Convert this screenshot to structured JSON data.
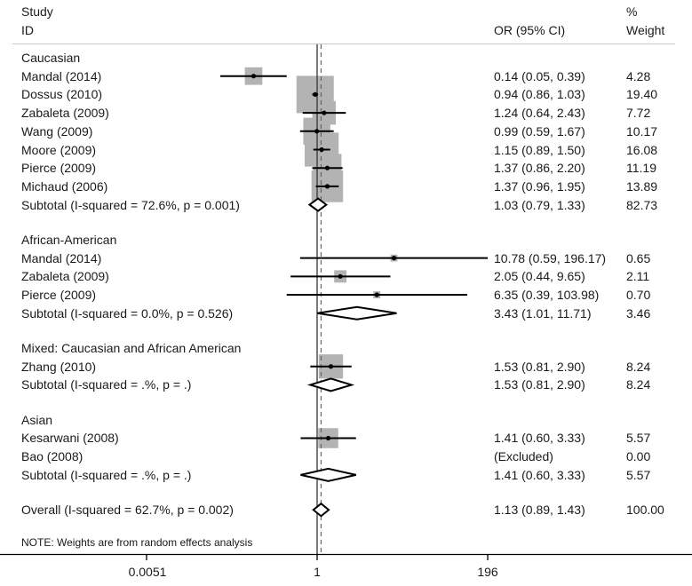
{
  "chart_data": {
    "type": "forest",
    "title": "",
    "xlabel": "",
    "ylabel": "",
    "x_scale": "log",
    "x_ticks": [
      0.0051,
      1,
      196
    ],
    "x_tick_labels": [
      "0.0051",
      "1",
      "196"
    ],
    "null_line": 1,
    "overall_line": 1.13,
    "columns": {
      "study_header": [
        "Study",
        "ID"
      ],
      "or_header": "OR (95% CI)",
      "weight_header": [
        "%",
        "Weight"
      ]
    },
    "groups": [
      {
        "name": "Caucasian",
        "studies": [
          {
            "id": "Mandal (2014)",
            "or": 0.14,
            "lo": 0.05,
            "hi": 0.39,
            "or_text": "0.14 (0.05, 0.39)",
            "weight": "4.28"
          },
          {
            "id": "Dossus (2010)",
            "or": 0.94,
            "lo": 0.86,
            "hi": 1.03,
            "or_text": "0.94 (0.86, 1.03)",
            "weight": "19.40"
          },
          {
            "id": "Zabaleta (2009)",
            "or": 1.24,
            "lo": 0.64,
            "hi": 2.43,
            "or_text": "1.24 (0.64, 2.43)",
            "weight": "7.72"
          },
          {
            "id": "Wang (2009)",
            "or": 0.99,
            "lo": 0.59,
            "hi": 1.67,
            "or_text": "0.99 (0.59, 1.67)",
            "weight": "10.17"
          },
          {
            "id": "Moore (2009)",
            "or": 1.15,
            "lo": 0.89,
            "hi": 1.5,
            "or_text": "1.15 (0.89, 1.50)",
            "weight": "16.08"
          },
          {
            "id": "Pierce (2009)",
            "or": 1.37,
            "lo": 0.86,
            "hi": 2.2,
            "or_text": "1.37 (0.86, 2.20)",
            "weight": "11.19"
          },
          {
            "id": "Michaud (2006)",
            "or": 1.37,
            "lo": 0.96,
            "hi": 1.95,
            "or_text": "1.37 (0.96, 1.95)",
            "weight": "13.89"
          }
        ],
        "subtotal": {
          "label": "Subtotal  (I-squared = 72.6%, p = 0.001)",
          "or": 1.03,
          "lo": 0.79,
          "hi": 1.33,
          "or_text": "1.03 (0.79, 1.33)",
          "weight": "82.73"
        }
      },
      {
        "name": "African-American",
        "studies": [
          {
            "id": "Mandal (2014)",
            "or": 10.78,
            "lo": 0.59,
            "hi": 196.17,
            "or_text": "10.78 (0.59, 196.17)",
            "weight": "0.65"
          },
          {
            "id": "Zabaleta (2009)",
            "or": 2.05,
            "lo": 0.44,
            "hi": 9.65,
            "or_text": "2.05 (0.44, 9.65)",
            "weight": "2.11"
          },
          {
            "id": "Pierce (2009)",
            "or": 6.35,
            "lo": 0.39,
            "hi": 103.98,
            "or_text": "6.35 (0.39, 103.98)",
            "weight": "0.70"
          }
        ],
        "subtotal": {
          "label": "Subtotal  (I-squared = 0.0%, p = 0.526)",
          "or": 3.43,
          "lo": 1.01,
          "hi": 11.71,
          "or_text": "3.43 (1.01, 11.71)",
          "weight": "3.46"
        }
      },
      {
        "name": "Mixed: Caucasian and African American",
        "studies": [
          {
            "id": "Zhang (2010)",
            "or": 1.53,
            "lo": 0.81,
            "hi": 2.9,
            "or_text": "1.53 (0.81, 2.90)",
            "weight": "8.24"
          }
        ],
        "subtotal": {
          "label": "Subtotal  (I-squared = .%, p = .)",
          "or": 1.53,
          "lo": 0.81,
          "hi": 2.9,
          "or_text": "1.53 (0.81, 2.90)",
          "weight": "8.24"
        }
      },
      {
        "name": "Asian",
        "studies": [
          {
            "id": "Kesarwani (2008)",
            "or": 1.41,
            "lo": 0.6,
            "hi": 3.33,
            "or_text": "1.41 (0.60, 3.33)",
            "weight": "5.57"
          },
          {
            "id": "Bao (2008)",
            "or": null,
            "lo": null,
            "hi": null,
            "or_text": "(Excluded)",
            "weight": "0.00"
          }
        ],
        "subtotal": {
          "label": "Subtotal  (I-squared = .%, p = .)",
          "or": 1.41,
          "lo": 0.6,
          "hi": 3.33,
          "or_text": "1.41 (0.60, 3.33)",
          "weight": "5.57"
        }
      }
    ],
    "overall": {
      "label": "Overall  (I-squared = 62.7%, p = 0.002)",
      "or": 1.13,
      "lo": 0.89,
      "hi": 1.43,
      "or_text": "1.13 (0.89, 1.43)",
      "weight": "100.00"
    },
    "note": "NOTE: Weights are from random effects analysis",
    "colors": {
      "box": "#b3b3b3",
      "line": "#000000",
      "text": "#1a1a1a",
      "rule": "#c8c8c8"
    }
  }
}
